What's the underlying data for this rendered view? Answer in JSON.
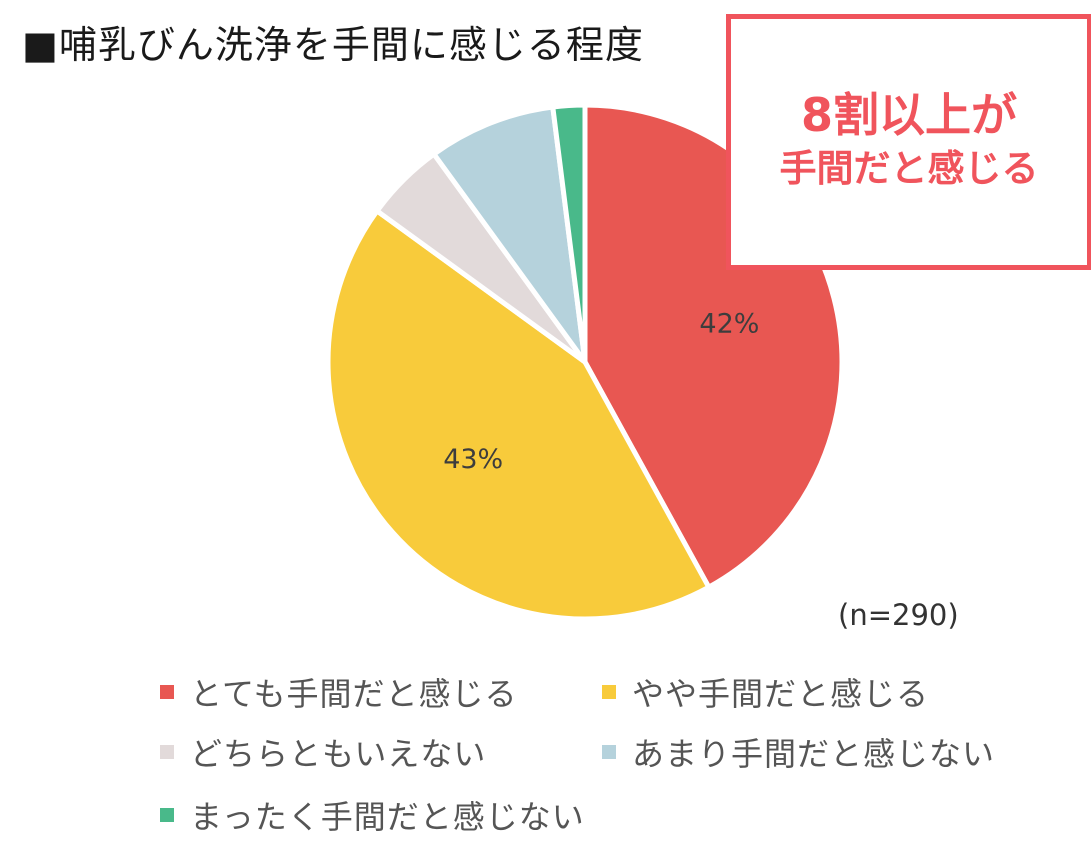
{
  "title": "■哺乳びん洗浄を手間に感じる程度",
  "callout": {
    "line1": "8割以上が",
    "line2": "手間だと感じる",
    "color": "#f0545c"
  },
  "sample_size": "(n=290)",
  "chart_data": {
    "type": "pie",
    "title": "■哺乳びん洗浄を手間に感じる程度",
    "start_angle_deg": 0,
    "direction": "clockwise",
    "slices": [
      {
        "label": "とても手間だと感じる",
        "value": 42,
        "display": "42%",
        "color": "#e85752"
      },
      {
        "label": "やや手間だと感じる",
        "value": 43,
        "display": "43%",
        "color": "#f8cb3b"
      },
      {
        "label": "どちらともいえない",
        "value": 5,
        "display": "",
        "color": "#e2dada"
      },
      {
        "label": "あまり手間だと感じない",
        "value": 8,
        "display": "",
        "color": "#b5d2dc"
      },
      {
        "label": "まったく手間だと感じない",
        "value": 2,
        "display": "",
        "color": "#49b98a"
      }
    ],
    "legend_position": "bottom"
  }
}
